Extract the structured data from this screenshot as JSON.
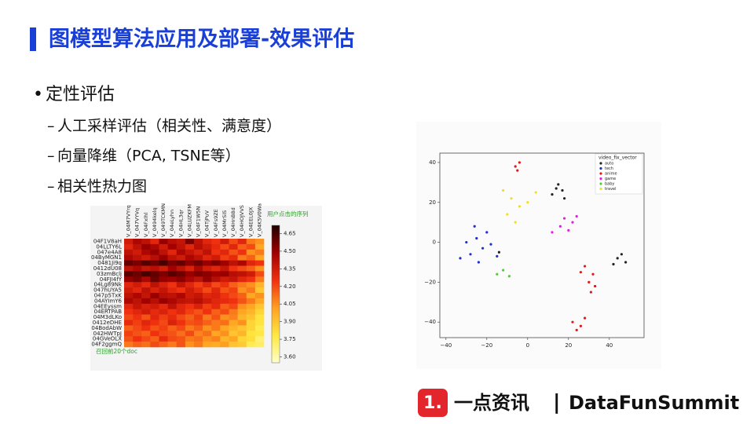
{
  "title": "图模型算法应用及部署-效果评估",
  "bullet": "定性评估",
  "sub_bullets": [
    "人工采样评估（相关性、满意度）",
    "向量降维（PCA, TSNE等）",
    "相关性热力图"
  ],
  "heatmap": {
    "type": "heatmap",
    "column_title": "用户点击的序列",
    "row_title": "召回前20个doc",
    "rows": [
      "04F1V8aH",
      "04LLTY6L",
      "047e4A8",
      "04ByMGN1",
      "0481Ji9q",
      "0412dU08",
      "03zmBclj",
      "04FJI4fY",
      "04Lg89Nk",
      "047hUYA5",
      "047p5TxK",
      "04AYImY6",
      "04EEyssm",
      "04ERTPAB",
      "04M3dLKo",
      "0412eDHE",
      "04BodAbW",
      "042HWTpJ",
      "04GVeOLX",
      "04F2ggmQ"
    ],
    "columns": [
      "V_04M7VYrq",
      "V_047VYVq",
      "V_04Fxlhl",
      "V_0494kelq",
      "V_049TCKMN",
      "V_04eLyhn",
      "V_04HL3qr",
      "V_04LUZKFM",
      "V_04F1W5N",
      "V_04TjPuV",
      "V_04Fs9ZE",
      "V_04MrSiS",
      "V_04HnB8d",
      "V_04HOJVVS",
      "V_04EEL0JX",
      "V_04K5V0Wa"
    ],
    "values": [
      [
        4.35,
        4.45,
        4.4,
        4.3,
        4.5,
        4.42,
        4.38,
        4.55,
        4.4,
        4.3,
        4.25,
        4.35,
        4.2,
        4.3,
        4.1,
        4.05
      ],
      [
        4.3,
        4.4,
        4.5,
        4.45,
        4.35,
        4.48,
        4.4,
        4.3,
        4.42,
        4.35,
        4.28,
        4.2,
        4.3,
        4.15,
        4.2,
        4.0
      ],
      [
        4.4,
        4.35,
        4.45,
        4.5,
        4.4,
        4.3,
        4.45,
        4.38,
        4.32,
        4.4,
        4.25,
        4.3,
        4.18,
        4.25,
        4.05,
        4.1
      ],
      [
        4.45,
        4.4,
        4.35,
        4.42,
        4.5,
        4.4,
        4.35,
        4.45,
        4.4,
        4.3,
        4.35,
        4.22,
        4.28,
        4.1,
        4.15,
        4.0
      ],
      [
        4.6,
        4.55,
        4.62,
        4.58,
        4.65,
        4.55,
        4.6,
        4.52,
        4.58,
        4.5,
        4.55,
        4.48,
        4.4,
        4.45,
        4.3,
        4.25
      ],
      [
        4.4,
        4.45,
        4.38,
        4.42,
        4.35,
        4.48,
        4.4,
        4.32,
        4.45,
        4.35,
        4.3,
        4.38,
        4.25,
        4.2,
        4.15,
        4.05
      ],
      [
        4.62,
        4.58,
        4.65,
        4.6,
        4.55,
        4.62,
        4.58,
        4.5,
        4.55,
        4.52,
        4.48,
        4.5,
        4.42,
        4.4,
        4.35,
        4.2
      ],
      [
        4.5,
        4.55,
        4.45,
        4.58,
        4.5,
        4.48,
        4.52,
        4.45,
        4.4,
        4.5,
        4.42,
        4.35,
        4.38,
        4.3,
        4.25,
        4.1
      ],
      [
        4.3,
        4.35,
        4.28,
        4.4,
        4.32,
        4.25,
        4.38,
        4.3,
        4.22,
        4.3,
        4.2,
        4.25,
        4.15,
        4.1,
        4.05,
        3.95
      ],
      [
        4.35,
        4.3,
        4.4,
        4.32,
        4.38,
        4.3,
        4.25,
        4.35,
        4.28,
        4.2,
        4.3,
        4.18,
        4.22,
        4.05,
        4.1,
        3.9
      ],
      [
        4.4,
        4.45,
        4.38,
        4.5,
        4.42,
        4.4,
        4.45,
        4.35,
        4.38,
        4.3,
        4.32,
        4.25,
        4.2,
        4.15,
        4.0,
        4.05
      ],
      [
        4.45,
        4.4,
        4.48,
        4.42,
        4.5,
        4.45,
        4.4,
        4.38,
        4.42,
        4.35,
        4.3,
        4.28,
        4.25,
        4.18,
        4.1,
        4.0
      ],
      [
        4.3,
        4.38,
        4.32,
        4.35,
        4.28,
        4.4,
        4.3,
        4.25,
        4.32,
        4.22,
        4.28,
        4.15,
        4.2,
        4.05,
        4.0,
        3.9
      ],
      [
        4.25,
        4.3,
        4.35,
        4.28,
        4.32,
        4.25,
        4.3,
        4.22,
        4.18,
        4.25,
        4.15,
        4.2,
        4.1,
        4.0,
        3.95,
        3.85
      ],
      [
        4.2,
        4.25,
        4.18,
        4.3,
        4.22,
        4.28,
        4.2,
        4.15,
        4.22,
        4.1,
        4.18,
        4.05,
        4.08,
        3.95,
        3.9,
        3.8
      ],
      [
        4.28,
        4.22,
        4.3,
        4.25,
        4.2,
        4.32,
        4.25,
        4.18,
        4.2,
        4.15,
        4.1,
        4.12,
        4.0,
        4.05,
        3.85,
        3.8
      ],
      [
        4.15,
        4.2,
        4.25,
        4.18,
        4.22,
        4.15,
        4.2,
        4.1,
        4.15,
        4.05,
        4.1,
        4.0,
        3.95,
        3.9,
        3.85,
        3.75
      ],
      [
        4.22,
        4.18,
        4.15,
        4.25,
        4.2,
        4.18,
        4.12,
        4.2,
        4.08,
        4.12,
        4.0,
        4.05,
        3.9,
        3.95,
        3.8,
        3.78
      ],
      [
        4.18,
        4.25,
        4.2,
        4.15,
        4.28,
        4.2,
        4.18,
        4.1,
        4.12,
        4.05,
        4.08,
        3.95,
        4.0,
        3.85,
        3.82,
        3.7
      ],
      [
        4.1,
        4.15,
        4.12,
        4.2,
        4.15,
        4.1,
        4.18,
        4.05,
        4.1,
        4.0,
        3.98,
        4.02,
        3.9,
        3.88,
        3.75,
        3.72
      ]
    ],
    "colors": [
      "#ffffc8",
      "#ffe840",
      "#ffa020",
      "#f03010",
      "#a00000",
      "#200000"
    ],
    "clim": [
      3.55,
      4.72
    ],
    "cticks": [
      4.65,
      {
        "value": 4.5,
        "label": "4.50"
      },
      4.35,
      {
        "value": 4.2,
        "label": "4.20"
      },
      4.05,
      {
        "value": 3.9,
        "label": "3.90"
      },
      3.75,
      {
        "value": 3.6,
        "label": "3.60"
      }
    ]
  },
  "scatter": {
    "type": "scatter",
    "legend_title": "video_fix_vector",
    "xlim": [
      -43,
      57
    ],
    "ylim": [
      -47.8,
      44.7
    ],
    "xticks": [
      {
        "value": -40,
        "label": "−40"
      },
      {
        "value": -20,
        "label": "−20"
      },
      0,
      20,
      40
    ],
    "yticks": [
      40,
      20,
      0,
      {
        "value": -20,
        "label": "−20"
      },
      {
        "value": -40,
        "label": "−40"
      }
    ],
    "series": [
      {
        "name": "auto",
        "color": "#222222",
        "x": [
          14,
          17,
          12,
          18,
          15,
          44,
          48,
          42,
          46,
          -14
        ],
        "y": [
          27,
          26,
          24,
          22,
          29,
          -8,
          -10,
          -11,
          -6,
          -5
        ]
      },
      {
        "name": "tech",
        "color": "#1f2fd0",
        "x": [
          -30,
          -25,
          -22,
          -28,
          -20,
          -33,
          -18,
          -26,
          -24,
          -15
        ],
        "y": [
          0,
          2,
          -3,
          -6,
          5,
          -8,
          -1,
          8,
          -10,
          -7
        ]
      },
      {
        "name": "anime",
        "color": "#e01818",
        "x": [
          -6,
          -4,
          -5,
          28,
          32,
          26,
          30,
          33,
          31,
          22,
          26,
          28,
          24
        ],
        "y": [
          38,
          40,
          36,
          -12,
          -16,
          -15,
          -20,
          -22,
          -25,
          -40,
          -42,
          -38,
          -44
        ]
      },
      {
        "name": "game",
        "color": "#e020e0",
        "x": [
          18,
          22,
          20,
          24,
          16,
          12
        ],
        "y": [
          12,
          10,
          6,
          13,
          8,
          5
        ]
      },
      {
        "name": "baby",
        "color": "#50d030",
        "x": [
          -12,
          -9,
          -15
        ],
        "y": [
          -14,
          -17,
          -16
        ]
      },
      {
        "name": "travel",
        "color": "#f0e020",
        "x": [
          -12,
          -8,
          -4,
          0,
          -10,
          4,
          -6
        ],
        "y": [
          26,
          22,
          18,
          20,
          14,
          25,
          10
        ]
      }
    ]
  },
  "logo": {
    "mark": "1.",
    "brand": "一点资讯",
    "separator": "|",
    "event": "DataFunSummit"
  }
}
